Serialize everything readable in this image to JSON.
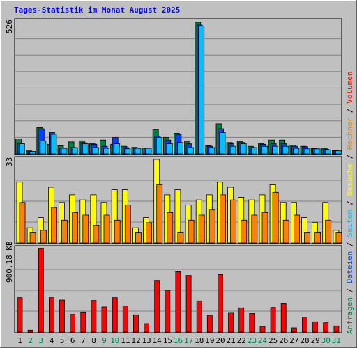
{
  "title": "Tages-Statistik im Monat August 2025",
  "colors": {
    "background": "#c0c0c0",
    "title": "#0000ff",
    "hits": "#008040",
    "files": "#0040ff",
    "pages": "#00c0ff",
    "visits": "#ffff00",
    "sites": "#ff8000",
    "kbytes": "#ff0000",
    "weekend_day": "#00805c",
    "weekday": "#000000"
  },
  "right_legend": {
    "top": [
      {
        "text": "Anfragen",
        "color": "#008040"
      },
      {
        "text": " / ",
        "color": "#000000"
      },
      {
        "text": "Dateien",
        "color": "#0040ff"
      },
      {
        "text": " / ",
        "color": "#000000"
      },
      {
        "text": "Seiten",
        "color": "#00c0ff"
      },
      {
        "text": " / ",
        "color": "#000000"
      },
      {
        "text": "Besuche",
        "color": "#ffff00"
      },
      {
        "text": " / ",
        "color": "#000000"
      },
      {
        "text": "Rechner",
        "color": "#ff8000"
      },
      {
        "text": " / ",
        "color": "#000000"
      },
      {
        "text": "Volumen",
        "color": "#ff0000"
      }
    ]
  },
  "chart_data": [
    {
      "type": "bar",
      "panel": "hits-files-pages",
      "max_label": "526",
      "ylim": [
        0,
        526
      ],
      "categories": [
        "1",
        "2",
        "3",
        "4",
        "5",
        "6",
        "7",
        "8",
        "9",
        "10",
        "11",
        "12",
        "13",
        "14",
        "15",
        "16",
        "17",
        "18",
        "19",
        "20",
        "21",
        "22",
        "23",
        "24",
        "25",
        "26",
        "27",
        "28",
        "29",
        "30",
        "31"
      ],
      "series": [
        {
          "name": "Anfragen",
          "values": [
            60,
            12,
            105,
            38,
            32,
            48,
            52,
            40,
            55,
            38,
            30,
            26,
            24,
            97,
            65,
            82,
            50,
            526,
            32,
            120,
            45,
            50,
            30,
            40,
            55,
            55,
            35,
            30,
            22,
            22,
            14
          ]
        },
        {
          "name": "Dateien",
          "values": [
            40,
            10,
            100,
            85,
            22,
            25,
            45,
            38,
            30,
            65,
            25,
            22,
            22,
            70,
            55,
            78,
            40,
            515,
            30,
            100,
            40,
            45,
            25,
            38,
            40,
            40,
            30,
            28,
            20,
            18,
            12
          ]
        },
        {
          "name": "Seiten",
          "values": [
            40,
            10,
            52,
            78,
            22,
            25,
            40,
            25,
            22,
            40,
            20,
            22,
            22,
            65,
            40,
            45,
            25,
            510,
            25,
            85,
            30,
            40,
            25,
            30,
            30,
            30,
            22,
            20,
            20,
            16,
            12
          ]
        }
      ]
    },
    {
      "type": "bar",
      "panel": "visits-sites",
      "max_label": "33",
      "ylim": [
        0,
        33
      ],
      "categories": [
        "1",
        "2",
        "3",
        "4",
        "5",
        "6",
        "7",
        "8",
        "9",
        "10",
        "11",
        "12",
        "13",
        "14",
        "15",
        "16",
        "17",
        "18",
        "19",
        "20",
        "21",
        "22",
        "23",
        "24",
        "25",
        "26",
        "27",
        "28",
        "29",
        "30",
        "31"
      ],
      "series": [
        {
          "name": "Besuche",
          "values": [
            24,
            6,
            10,
            22,
            16,
            19,
            17,
            19,
            16,
            21,
            21,
            6,
            10,
            33,
            19,
            21,
            15,
            17,
            19,
            24,
            22,
            18,
            17,
            19,
            23,
            16,
            16,
            10,
            8,
            16,
            5
          ]
        },
        {
          "name": "Rechner",
          "values": [
            16,
            4,
            5,
            14,
            9,
            12,
            11,
            7,
            11,
            9,
            15,
            4,
            8,
            23,
            12,
            4,
            9,
            11,
            13,
            19,
            17,
            9,
            11,
            12,
            20,
            9,
            11,
            4,
            4,
            9,
            4
          ]
        }
      ]
    },
    {
      "type": "bar",
      "panel": "kbytes",
      "max_label": "900.18 KB",
      "ylim": [
        0,
        900.18
      ],
      "categories": [
        "1",
        "2",
        "3",
        "4",
        "5",
        "6",
        "7",
        "8",
        "9",
        "10",
        "11",
        "12",
        "13",
        "14",
        "15",
        "16",
        "17",
        "18",
        "19",
        "20",
        "21",
        "22",
        "23",
        "24",
        "25",
        "26",
        "27",
        "28",
        "29",
        "30",
        "31"
      ],
      "series": [
        {
          "name": "Volumen",
          "values": [
            370,
            20,
            900,
            370,
            345,
            190,
            215,
            340,
            270,
            370,
            280,
            185,
            90,
            550,
            450,
            650,
            610,
            335,
            180,
            620,
            210,
            260,
            200,
            60,
            265,
            305,
            45,
            160,
            110,
            100,
            65
          ]
        }
      ]
    }
  ]
}
